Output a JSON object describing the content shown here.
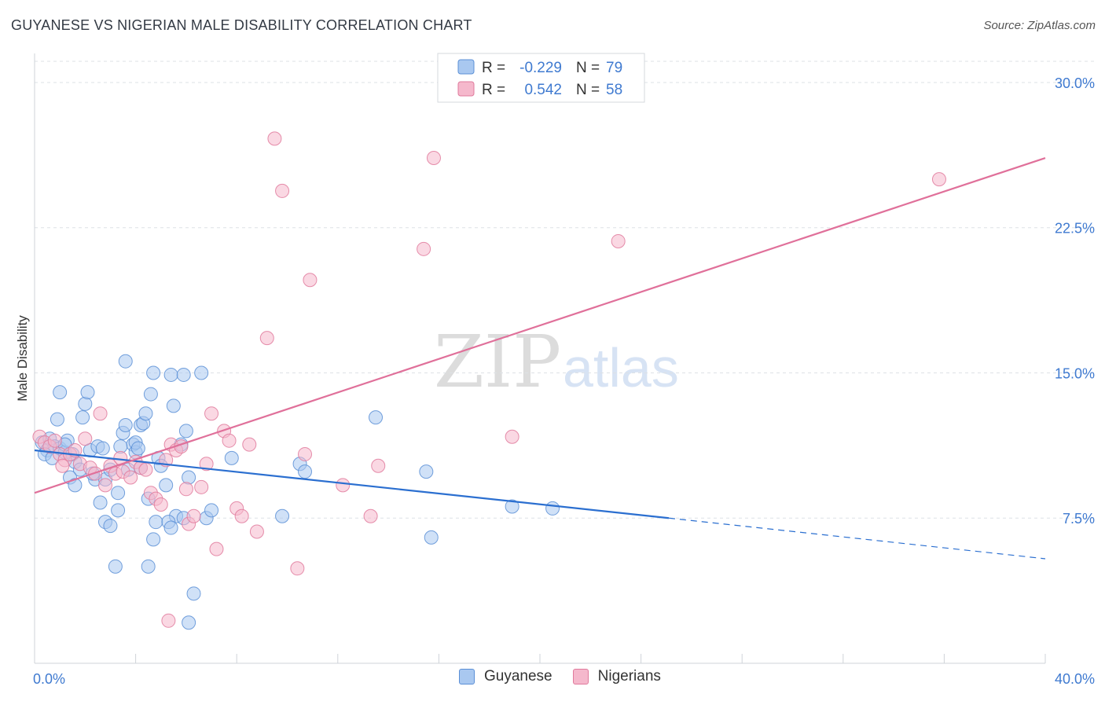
{
  "header": {
    "title": "GUYANESE VS NIGERIAN MALE DISABILITY CORRELATION CHART",
    "source": "Source: ZipAtlas.com"
  },
  "watermark": {
    "zip": "ZIP",
    "atlas": "atlas"
  },
  "colors": {
    "guyanese_fill": "#a9c8f0",
    "guyanese_stroke": "#5b8fd6",
    "guyanese_line": "#2b6fd0",
    "nigerians_fill": "#f5b8cc",
    "nigerians_stroke": "#e07a9c",
    "nigerians_line": "#e0709a",
    "accent_text": "#3f7ad0",
    "grid": "#dde1e6"
  },
  "chart_data": {
    "type": "scatter",
    "title": "GUYANESE VS NIGERIAN MALE DISABILITY CORRELATION CHART",
    "ylabel": "Male Disability",
    "xlabel": "",
    "xlim": [
      0,
      40
    ],
    "ylim": [
      0,
      31.5
    ],
    "x_tick_labels": [
      "0.0%",
      "40.0%"
    ],
    "y_ticks": [
      7.5,
      15.0,
      22.5,
      30.0
    ],
    "y_tick_labels": [
      "7.5%",
      "15.0%",
      "22.5%",
      "30.0%"
    ],
    "grid": "horizontal-dashed",
    "legend_stats": [
      {
        "r_label": "R =",
        "r_value": "-0.229",
        "n_label": "N =",
        "n_value": "79"
      },
      {
        "r_label": "R =",
        "r_value": "0.542",
        "n_label": "N =",
        "n_value": "58"
      }
    ],
    "series": [
      {
        "name": "Guyanese",
        "trend": {
          "x0": 0,
          "y0": 11.0,
          "x1": 25.1,
          "y1": 7.5,
          "dash_to_x": 40,
          "dash_to_y": 5.4
        },
        "points": [
          [
            0.3,
            11.4
          ],
          [
            0.5,
            11.0
          ],
          [
            0.6,
            11.6
          ],
          [
            0.8,
            11.2
          ],
          [
            0.4,
            10.8
          ],
          [
            0.7,
            10.6
          ],
          [
            1.0,
            11.1
          ],
          [
            1.2,
            10.9
          ],
          [
            0.9,
            12.6
          ],
          [
            1.0,
            14.0
          ],
          [
            1.3,
            11.5
          ],
          [
            1.5,
            10.8
          ],
          [
            1.6,
            10.4
          ],
          [
            1.8,
            10.0
          ],
          [
            2.0,
            13.4
          ],
          [
            2.1,
            14.0
          ],
          [
            1.9,
            12.7
          ],
          [
            2.2,
            11.0
          ],
          [
            2.5,
            11.2
          ],
          [
            2.7,
            11.1
          ],
          [
            2.4,
            9.5
          ],
          [
            1.4,
            9.6
          ],
          [
            1.6,
            9.2
          ],
          [
            2.3,
            9.8
          ],
          [
            2.8,
            9.5
          ],
          [
            3.0,
            10.0
          ],
          [
            3.3,
            8.8
          ],
          [
            2.6,
            8.3
          ],
          [
            3.5,
            11.9
          ],
          [
            3.6,
            12.3
          ],
          [
            3.9,
            11.3
          ],
          [
            4.0,
            10.9
          ],
          [
            3.4,
            11.2
          ],
          [
            4.2,
            12.3
          ],
          [
            4.3,
            12.4
          ],
          [
            4.4,
            12.9
          ],
          [
            4.0,
            11.4
          ],
          [
            4.1,
            11.1
          ],
          [
            3.7,
            10.0
          ],
          [
            2.8,
            7.3
          ],
          [
            3.3,
            7.9
          ],
          [
            3.0,
            7.1
          ],
          [
            4.5,
            8.5
          ],
          [
            4.2,
            10.1
          ],
          [
            4.7,
            6.4
          ],
          [
            4.8,
            7.3
          ],
          [
            4.9,
            10.6
          ],
          [
            5.0,
            10.2
          ],
          [
            5.2,
            9.2
          ],
          [
            5.5,
            13.3
          ],
          [
            6.0,
            12.0
          ],
          [
            5.8,
            11.3
          ],
          [
            6.1,
            9.6
          ],
          [
            5.6,
            7.6
          ],
          [
            5.3,
            7.3
          ],
          [
            5.4,
            7.0
          ],
          [
            5.9,
            7.5
          ],
          [
            4.7,
            15.0
          ],
          [
            5.4,
            14.9
          ],
          [
            5.9,
            14.9
          ],
          [
            6.6,
            15.0
          ],
          [
            3.6,
            15.6
          ],
          [
            4.6,
            13.9
          ],
          [
            3.2,
            5.0
          ],
          [
            4.5,
            5.0
          ],
          [
            6.3,
            3.6
          ],
          [
            6.1,
            2.1
          ],
          [
            6.8,
            7.5
          ],
          [
            7.0,
            7.9
          ],
          [
            7.8,
            10.6
          ],
          [
            9.8,
            7.6
          ],
          [
            10.5,
            10.3
          ],
          [
            10.7,
            9.9
          ],
          [
            13.5,
            12.7
          ],
          [
            15.5,
            9.9
          ],
          [
            15.7,
            6.5
          ],
          [
            18.9,
            8.1
          ],
          [
            20.5,
            8.0
          ],
          [
            1.2,
            11.3
          ]
        ]
      },
      {
        "name": "Nigerians",
        "trend": {
          "x0": 0,
          "y0": 8.8,
          "x1": 40,
          "y1": 26.1
        },
        "points": [
          [
            0.2,
            11.7
          ],
          [
            0.4,
            11.4
          ],
          [
            0.6,
            11.2
          ],
          [
            0.8,
            11.5
          ],
          [
            1.0,
            10.8
          ],
          [
            1.2,
            10.5
          ],
          [
            1.4,
            10.8
          ],
          [
            1.6,
            11.0
          ],
          [
            1.8,
            10.3
          ],
          [
            2.0,
            11.6
          ],
          [
            2.2,
            10.1
          ],
          [
            2.4,
            9.8
          ],
          [
            2.6,
            12.9
          ],
          [
            2.8,
            9.2
          ],
          [
            3.0,
            10.2
          ],
          [
            3.2,
            9.8
          ],
          [
            3.5,
            9.9
          ],
          [
            3.8,
            9.6
          ],
          [
            4.0,
            10.4
          ],
          [
            4.2,
            10.1
          ],
          [
            4.4,
            10.0
          ],
          [
            4.6,
            8.8
          ],
          [
            4.8,
            8.5
          ],
          [
            5.0,
            8.2
          ],
          [
            5.2,
            10.5
          ],
          [
            5.4,
            11.3
          ],
          [
            5.6,
            11.0
          ],
          [
            5.8,
            11.2
          ],
          [
            6.0,
            9.0
          ],
          [
            6.1,
            7.2
          ],
          [
            6.3,
            7.6
          ],
          [
            6.6,
            9.1
          ],
          [
            6.8,
            10.3
          ],
          [
            7.0,
            12.9
          ],
          [
            7.2,
            5.9
          ],
          [
            7.5,
            12.0
          ],
          [
            7.7,
            11.5
          ],
          [
            8.0,
            8.0
          ],
          [
            8.2,
            7.6
          ],
          [
            8.5,
            11.3
          ],
          [
            8.8,
            6.8
          ],
          [
            9.2,
            16.8
          ],
          [
            9.5,
            27.1
          ],
          [
            9.8,
            24.4
          ],
          [
            10.4,
            4.9
          ],
          [
            10.7,
            10.8
          ],
          [
            10.9,
            19.8
          ],
          [
            12.2,
            9.2
          ],
          [
            13.3,
            7.6
          ],
          [
            13.6,
            10.2
          ],
          [
            15.4,
            21.4
          ],
          [
            15.8,
            26.1
          ],
          [
            18.9,
            11.7
          ],
          [
            23.1,
            21.8
          ],
          [
            35.8,
            25.0
          ],
          [
            5.3,
            2.2
          ],
          [
            3.4,
            10.6
          ],
          [
            1.1,
            10.2
          ]
        ]
      }
    ]
  }
}
